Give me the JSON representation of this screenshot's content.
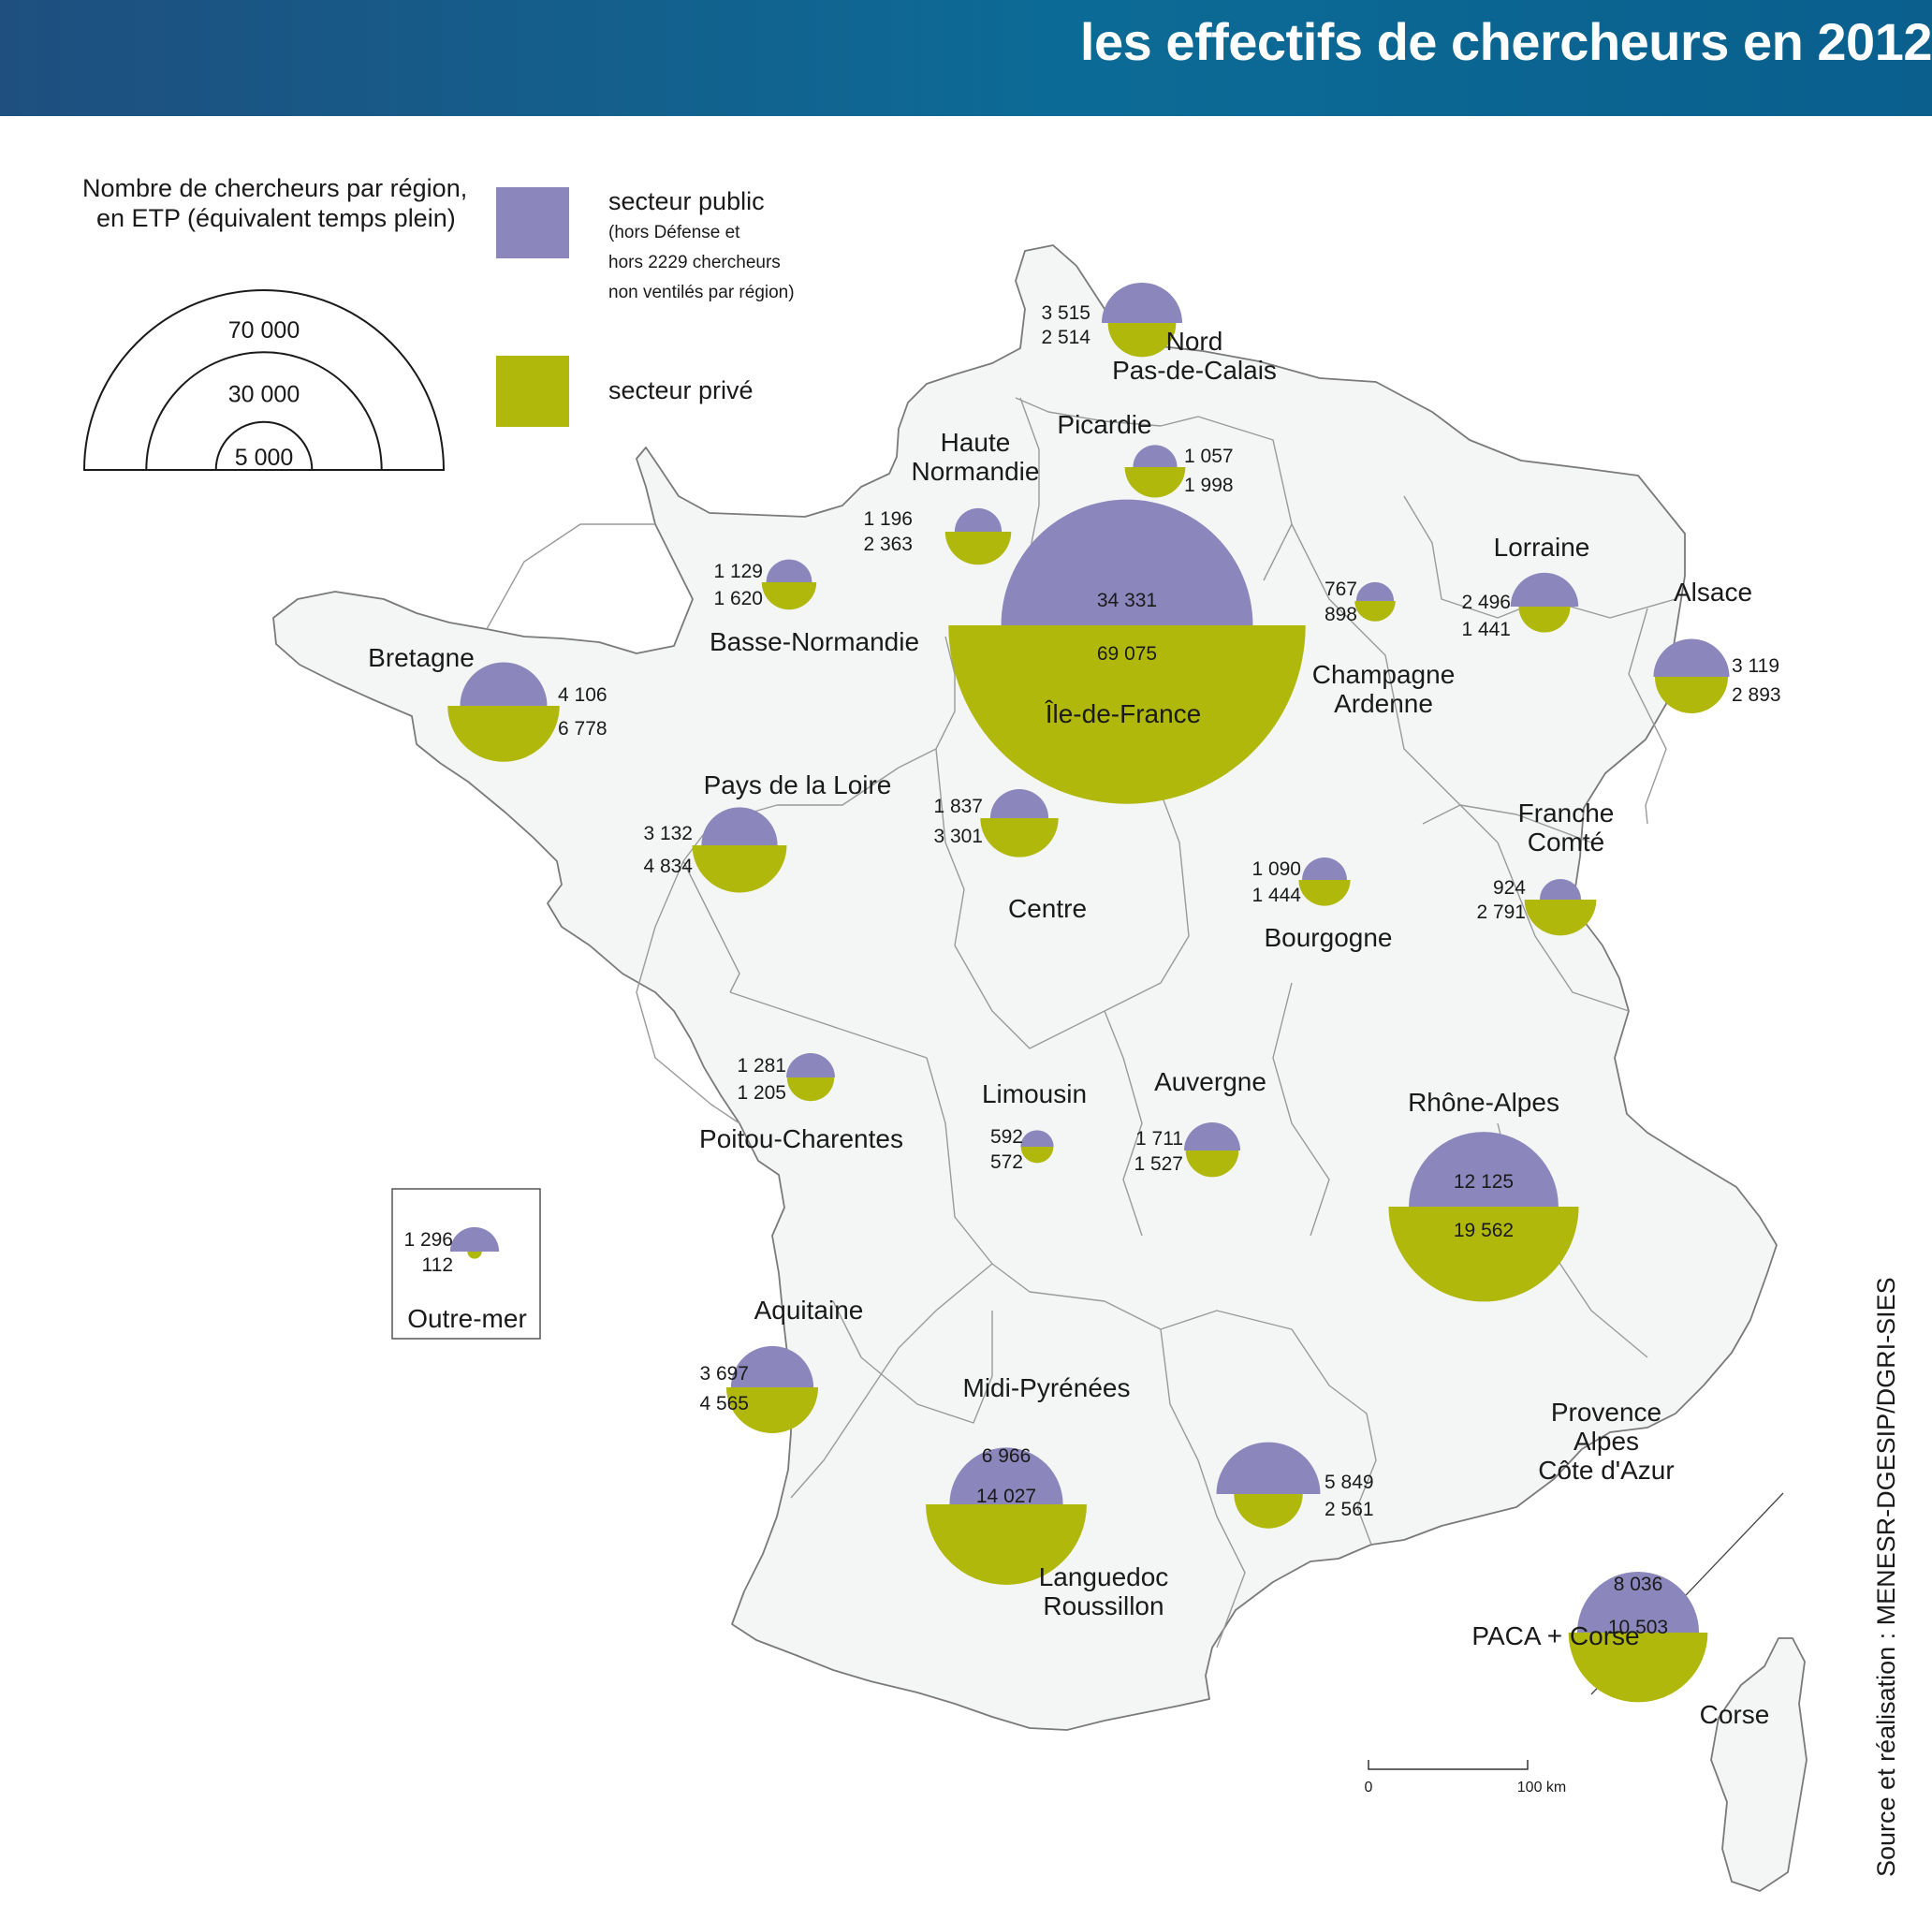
{
  "title": "les effectifs de chercheurs en 2012",
  "legend": {
    "heading_line1": "Nombre de chercheurs par région,",
    "heading_line2": "en ETP (équivalent temps plein)",
    "public_label": "secteur public",
    "public_note_line1": "(hors Défense et",
    "public_note_line2": "hors 2229 chercheurs",
    "public_note_line3": "non ventilés par région)",
    "private_label": "secteur privé",
    "size_values": [
      "70 000",
      "30 000",
      "5 000"
    ]
  },
  "colors": {
    "public": "#8b86bb",
    "private": "#b0b80c",
    "land": "#f4f5f5",
    "border": "#7a7a7a"
  },
  "source": "Source et réalisation : MENESR-DGESIP/DGRI-SIES",
  "scale": {
    "zero": "0",
    "distance": "100 km"
  },
  "regions": [
    {
      "name_lines": [
        "Nord",
        "Pas-de-Calais"
      ],
      "public": "3 515",
      "private": "2 514"
    },
    {
      "name_lines": [
        "Picardie"
      ],
      "public": "1 057",
      "private": "1 998"
    },
    {
      "name_lines": [
        "Haute",
        "Normandie"
      ],
      "public": "1 196",
      "private": "2 363"
    },
    {
      "name_lines": [
        "Basse-Normandie"
      ],
      "public": "1 129",
      "private": "1 620"
    },
    {
      "name_lines": [
        "Bretagne"
      ],
      "public": "4 106",
      "private": "6 778"
    },
    {
      "name_lines": [
        "Île-de-France"
      ],
      "public": "34 331",
      "private": "69 075"
    },
    {
      "name_lines": [
        "Champagne",
        "Ardenne"
      ],
      "public": "767",
      "private": "898"
    },
    {
      "name_lines": [
        "Lorraine"
      ],
      "public": "2 496",
      "private": "1 441"
    },
    {
      "name_lines": [
        "Alsace"
      ],
      "public": "3 119",
      "private": "2 893"
    },
    {
      "name_lines": [
        "Pays de la Loire"
      ],
      "public": "3 132",
      "private": "4 834"
    },
    {
      "name_lines": [
        "Centre"
      ],
      "public": "1 837",
      "private": "3 301"
    },
    {
      "name_lines": [
        "Bourgogne"
      ],
      "public": "1 090",
      "private": "1 444"
    },
    {
      "name_lines": [
        "Franche",
        "Comté"
      ],
      "public": "924",
      "private": "2 791"
    },
    {
      "name_lines": [
        "Poitou-Charentes"
      ],
      "public": "1 281",
      "private": "1 205"
    },
    {
      "name_lines": [
        "Limousin"
      ],
      "public": "592",
      "private": "572"
    },
    {
      "name_lines": [
        "Auvergne"
      ],
      "public": "1 711",
      "private": "1 527"
    },
    {
      "name_lines": [
        "Rhône-Alpes"
      ],
      "public": "12 125",
      "private": "19 562"
    },
    {
      "name_lines": [
        "Outre-mer"
      ],
      "public": "1 296",
      "private": "112"
    },
    {
      "name_lines": [
        "Aquitaine"
      ],
      "public": "3 697",
      "private": "4 565"
    },
    {
      "name_lines": [
        "Midi-Pyrénées"
      ],
      "public": "6 966",
      "private": "14 027"
    },
    {
      "name_lines": [
        "Languedoc",
        "Roussillon"
      ],
      "public": "5 849",
      "private": "2 561"
    },
    {
      "name_lines": [
        "Provence",
        "Alpes",
        "Côte d'Azur"
      ],
      "public": "",
      "private": ""
    },
    {
      "name_lines": [
        "PACA + Corse"
      ],
      "public": "8 036",
      "private": "10 503"
    },
    {
      "name_lines": [
        "Corse"
      ],
      "public": "",
      "private": ""
    }
  ]
}
